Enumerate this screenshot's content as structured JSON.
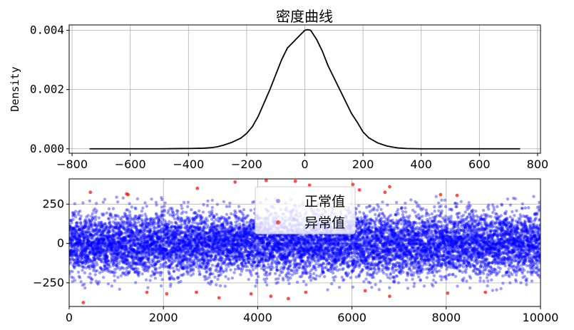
{
  "chart_data": [
    {
      "type": "line",
      "title": "密度曲线",
      "xlabel": "",
      "ylabel": "Density",
      "xlim": [
        -810,
        810
      ],
      "ylim": [
        -0.00015,
        0.00418
      ],
      "grid": true,
      "xticks": [
        -800,
        -600,
        -400,
        -200,
        0,
        200,
        400,
        600,
        800
      ],
      "xtick_labels": [
        "−800",
        "−600",
        "−400",
        "−200",
        "0",
        "200",
        "400",
        "600",
        "800"
      ],
      "yticks": [
        0.0,
        0.002,
        0.004
      ],
      "ytick_labels": [
        "0.000",
        "0.002",
        "0.004"
      ],
      "series": [
        {
          "color": "#000000",
          "x": [
            -740,
            -600,
            -500,
            -400,
            -350,
            -320,
            -300,
            -280,
            -250,
            -220,
            -200,
            -180,
            -160,
            -140,
            -120,
            -100,
            -80,
            -60,
            -40,
            -20,
            0,
            10,
            20,
            40,
            60,
            80,
            100,
            120,
            140,
            160,
            180,
            200,
            220,
            250,
            280,
            300,
            320,
            350,
            400,
            500,
            600,
            740
          ],
          "y": [
            0.0,
            0.0,
            0.0,
            1e-05,
            2e-05,
            4e-05,
            7e-05,
            0.00012,
            0.00022,
            0.00036,
            0.00052,
            0.00075,
            0.0011,
            0.00155,
            0.002,
            0.0025,
            0.003,
            0.0034,
            0.0036,
            0.0038,
            0.004,
            0.00402,
            0.004,
            0.0037,
            0.0033,
            0.0028,
            0.0024,
            0.002,
            0.0016,
            0.0012,
            0.0009,
            0.00057,
            0.00037,
            0.0002,
            0.0001,
            6e-05,
            3e-05,
            1e-05,
            0.0,
            0.0,
            0.0,
            0.0
          ]
        }
      ]
    },
    {
      "type": "scatter",
      "title": "",
      "xlabel": "",
      "ylabel": "",
      "xlim": [
        0,
        10000
      ],
      "ylim": [
        -400,
        410
      ],
      "grid": true,
      "xticks": [
        0,
        2000,
        4000,
        6000,
        8000,
        10000
      ],
      "xtick_labels": [
        "0",
        "2000",
        "4000",
        "6000",
        "8000",
        "10000"
      ],
      "yticks": [
        -250,
        0,
        250
      ],
      "ytick_labels": [
        "−250",
        "0",
        "250"
      ],
      "legend_position": "top-center",
      "series": [
        {
          "name": "正常值",
          "color": "#0000ff",
          "n_points": 10000,
          "distribution": "normal",
          "mean": 0,
          "std": 100,
          "clip": [
            -300,
            300
          ]
        },
        {
          "name": "异常值",
          "color": "#ff0000",
          "points": [
            [
              300,
              -375
            ],
            [
              450,
              325
            ],
            [
              1220,
              315
            ],
            [
              1250,
              310
            ],
            [
              1650,
              -310
            ],
            [
              2070,
              -320
            ],
            [
              2720,
              350
            ],
            [
              2700,
              -310
            ],
            [
              3180,
              -345
            ],
            [
              3520,
              390
            ],
            [
              3860,
              -320
            ],
            [
              4180,
              400
            ],
            [
              4280,
              -335
            ],
            [
              4650,
              -350
            ],
            [
              4800,
              395
            ],
            [
              5020,
              -310
            ],
            [
              5100,
              370
            ],
            [
              6020,
              375
            ],
            [
              6160,
              340
            ],
            [
              6280,
              -300
            ],
            [
              6700,
              325
            ],
            [
              6800,
              360
            ],
            [
              6800,
              -335
            ],
            [
              7880,
              310
            ],
            [
              8030,
              -315
            ],
            [
              8230,
              305
            ],
            [
              8830,
              -310
            ]
          ]
        }
      ]
    }
  ]
}
